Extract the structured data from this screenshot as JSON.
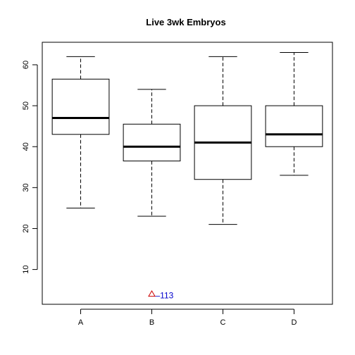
{
  "chart_data": {
    "type": "boxplot",
    "title": "Live 3wk Embryos",
    "xlabel": "",
    "ylabel": "",
    "categories": [
      "A",
      "B",
      "C",
      "D"
    ],
    "ylim": [
      1.5,
      65.5
    ],
    "yticks": [
      10,
      20,
      30,
      40,
      50,
      60
    ],
    "grid": false,
    "boxes": [
      {
        "name": "A",
        "min": 25,
        "q1": 43,
        "median": 47,
        "q3": 56.5,
        "max": 62
      },
      {
        "name": "B",
        "min": 23,
        "q1": 36.5,
        "median": 40,
        "q3": 45.5,
        "max": 54
      },
      {
        "name": "C",
        "min": 21,
        "q1": 32,
        "median": 41,
        "q3": 50,
        "max": 62
      },
      {
        "name": "D",
        "min": 33,
        "q1": 40,
        "median": 43,
        "q3": 50,
        "max": 63
      }
    ],
    "outliers": [
      {
        "category": "B",
        "value": 4,
        "label": "113"
      }
    ],
    "colors": {
      "outlier_marker": "#cc0000",
      "outlier_label": "#0000cc",
      "box": "#000000"
    }
  }
}
